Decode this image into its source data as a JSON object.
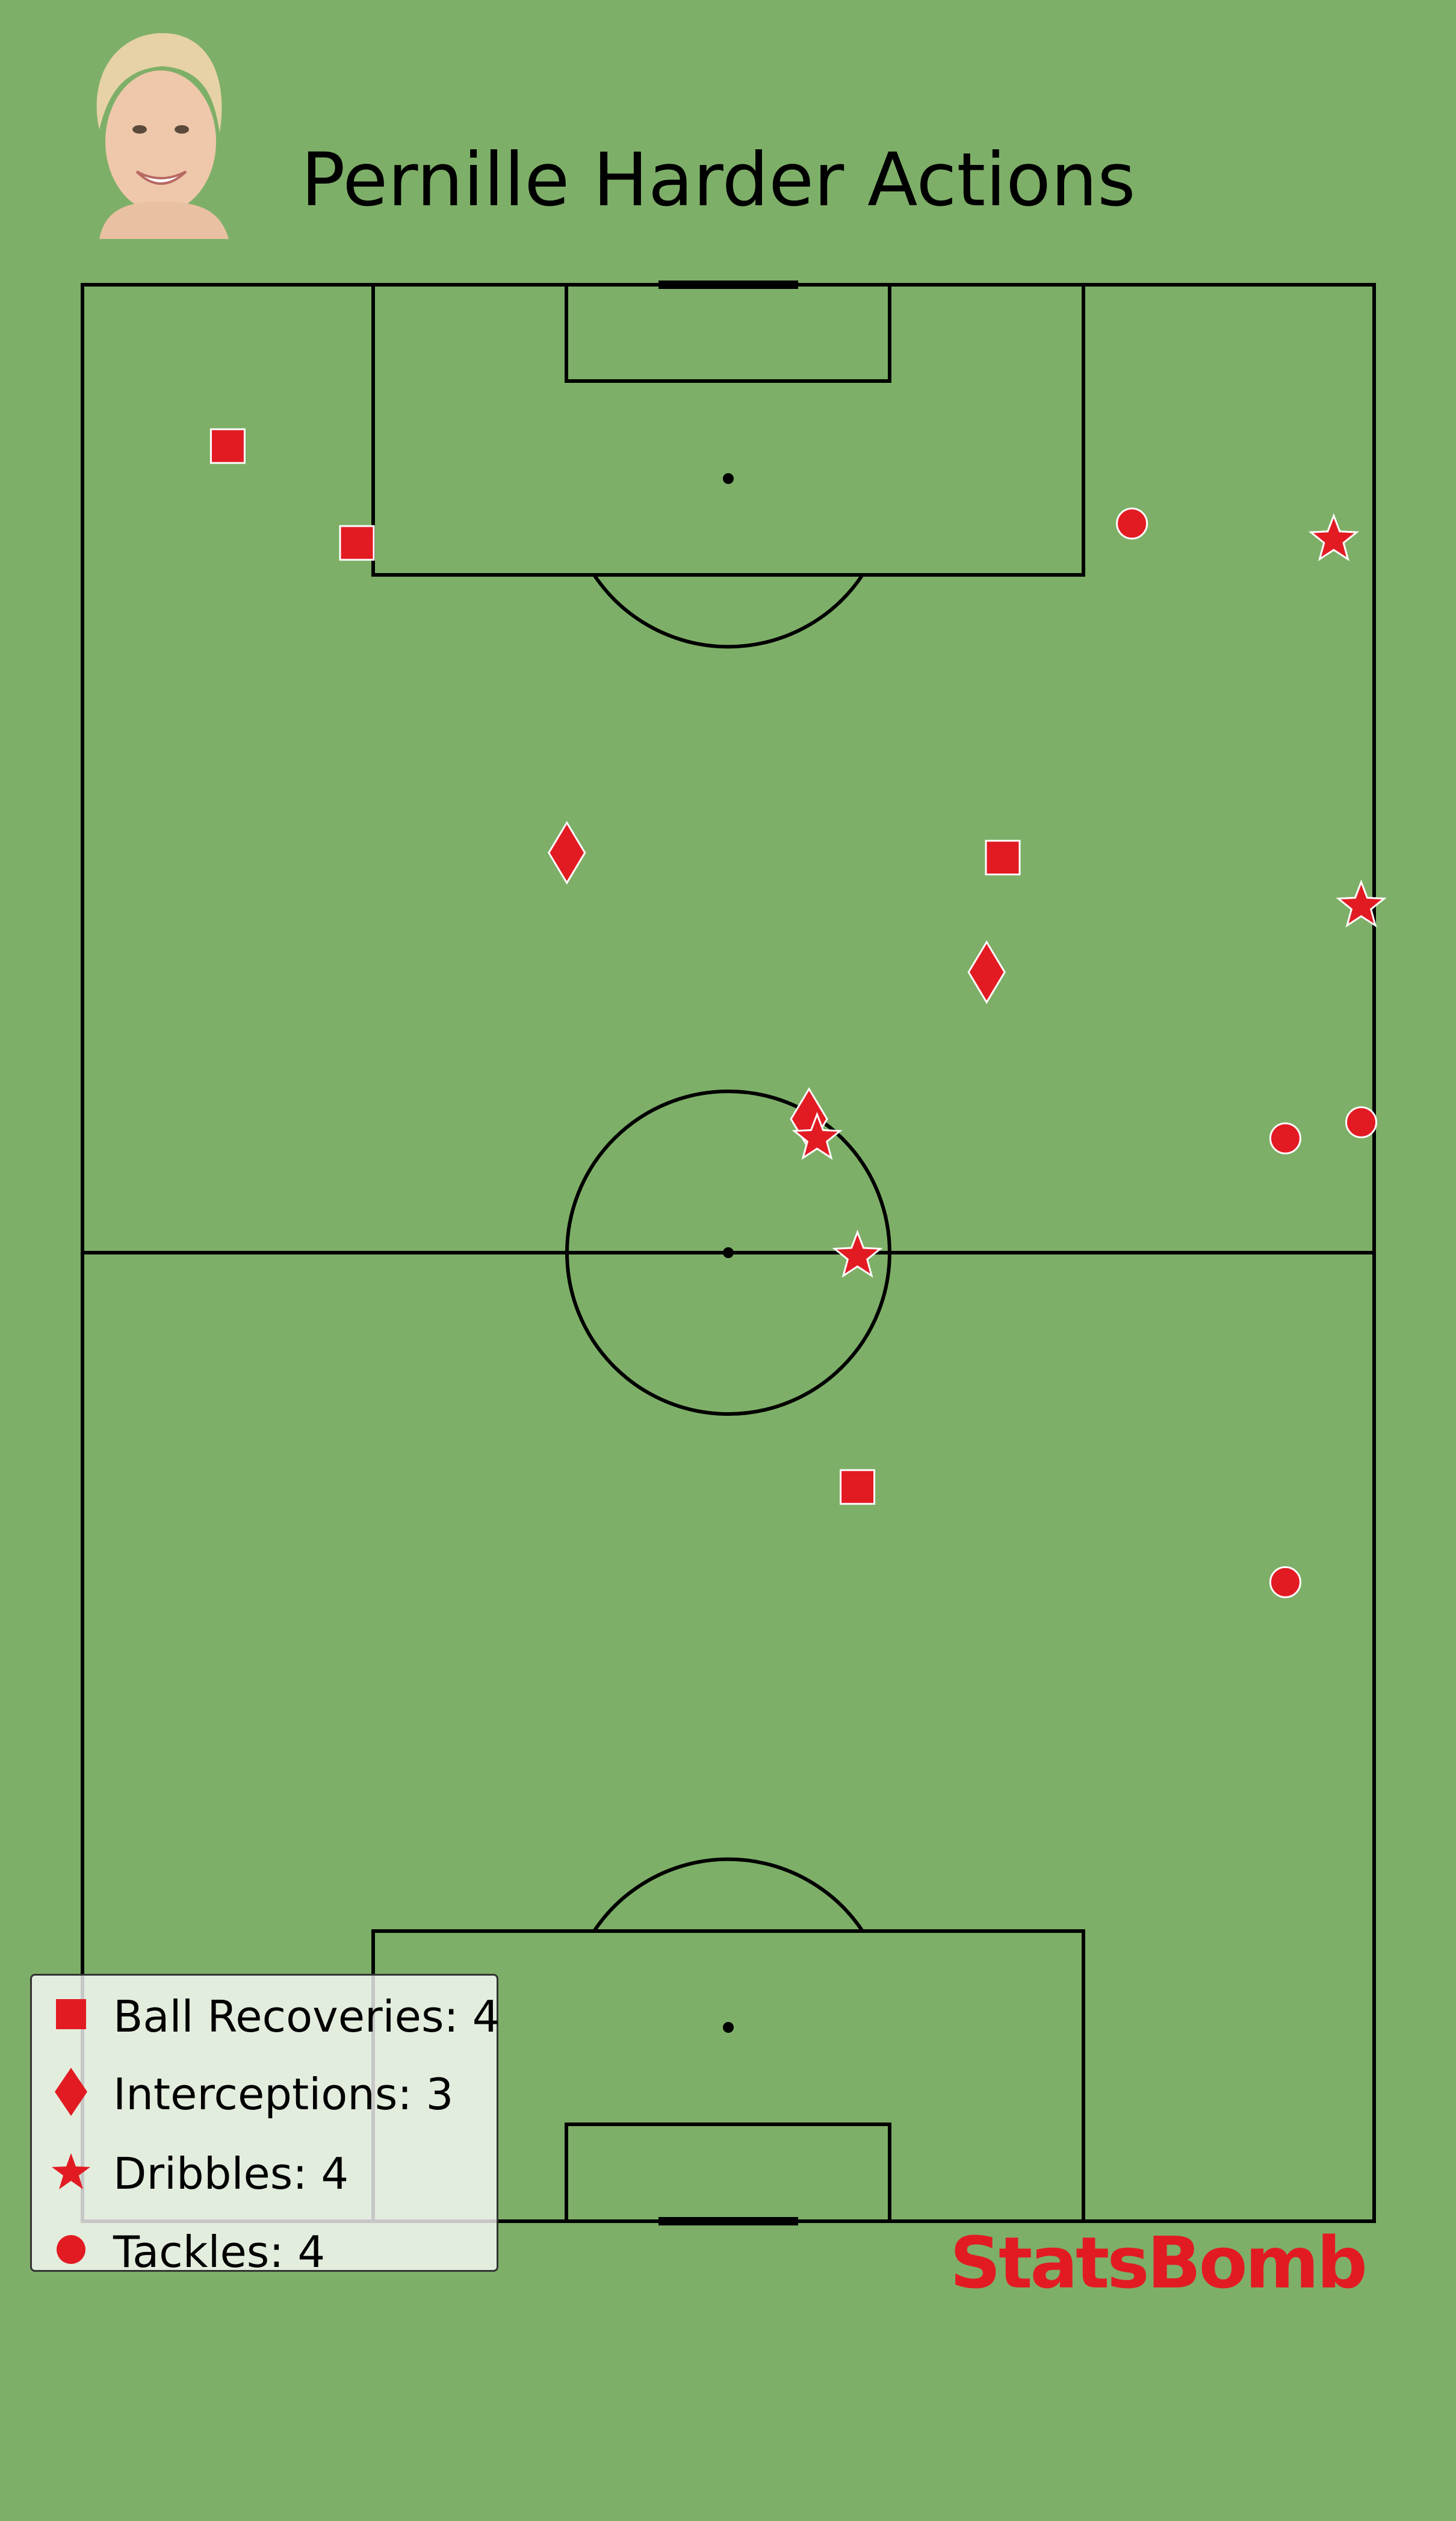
{
  "title": "Pernille Harder Actions",
  "brand": "StatsBomb",
  "colors": {
    "background": "#7eaf68",
    "lines": "#000000",
    "marker": "#e21b23",
    "marker_edge": "#ffffff"
  },
  "chart_data": {
    "type": "scatter",
    "pitch": "vertical full pitch",
    "series": [
      {
        "name": "Ball Recoveries",
        "marker": "square",
        "points": [
          [
            110,
            71
          ],
          [
            104,
            63
          ],
          [
            84.5,
            23
          ],
          [
            45.5,
            32
          ]
        ]
      },
      {
        "name": "Interceptions",
        "marker": "diamond",
        "points": [
          [
            84.8,
            50
          ],
          [
            77.4,
            24
          ],
          [
            68.3,
            35
          ]
        ]
      },
      {
        "name": "Dribbles",
        "marker": "star",
        "points": [
          [
            104.2,
            2.5
          ],
          [
            81.5,
            0.8
          ],
          [
            67.1,
            34.5
          ],
          [
            59.8,
            32
          ]
        ]
      },
      {
        "name": "Tackles",
        "marker": "circle",
        "points": [
          [
            105.2,
            15
          ],
          [
            67.1,
            5.5
          ],
          [
            68.1,
            0.8
          ],
          [
            39.6,
            5.5
          ]
        ]
      }
    ],
    "legend": {
      "position": "bottom-left",
      "items": [
        {
          "label": "Ball Recoveries: 4",
          "marker": "square"
        },
        {
          "label": "Interceptions: 3",
          "marker": "diamond"
        },
        {
          "label": "Dribbles: 4",
          "marker": "star"
        },
        {
          "label": "Tackles: 4",
          "marker": "circle"
        }
      ]
    }
  }
}
